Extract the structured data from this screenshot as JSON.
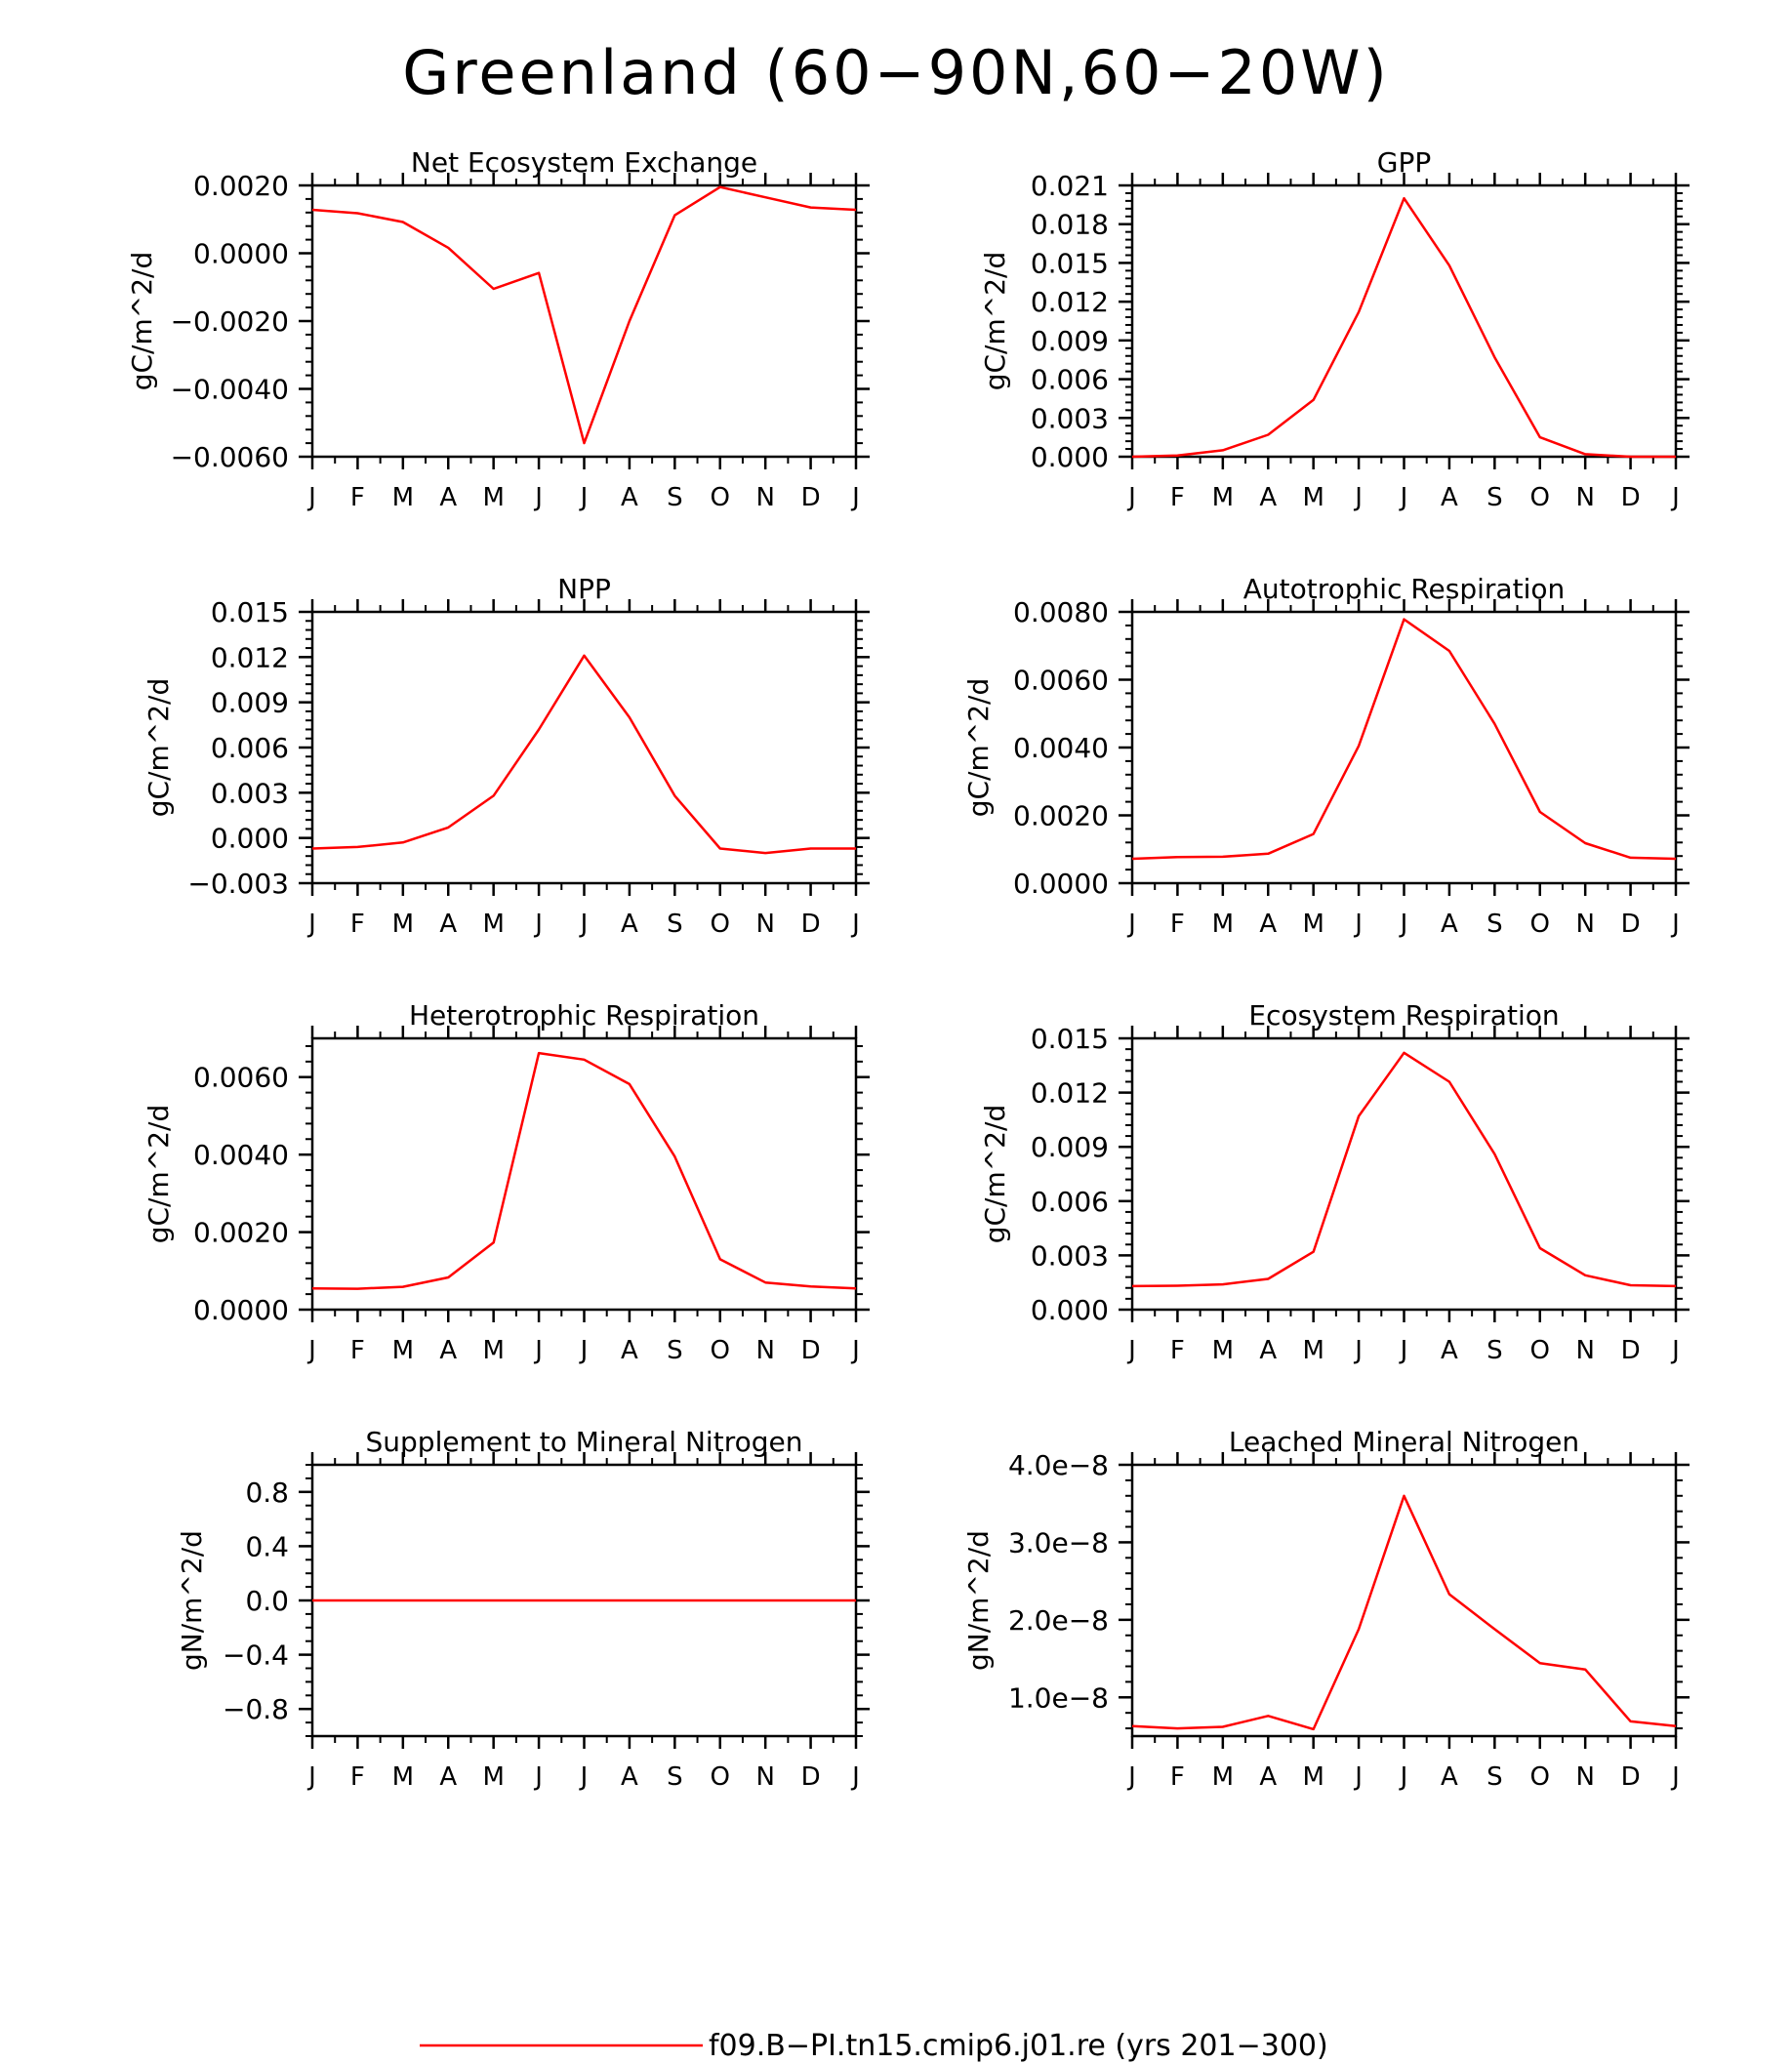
{
  "title": "Greenland (60−90N,60−20W)",
  "legend": {
    "label": "f09.B−PI.tn15.cmip6.j01.re (yrs 201−300)",
    "color": "#ff0000"
  },
  "x_tick_labels": [
    "J",
    "F",
    "M",
    "A",
    "M",
    "J",
    "J",
    "A",
    "S",
    "O",
    "N",
    "D",
    "J"
  ],
  "chart_data": [
    {
      "type": "line",
      "title": "Net Ecosystem Exchange",
      "ylabel": "gC/m^2/d",
      "ylim": [
        -0.006,
        0.002
      ],
      "yticks": [
        -0.006,
        -0.004,
        -0.002,
        0.0,
        0.002
      ],
      "ytick_labels": [
        "−0.0060",
        "−0.0040",
        "−0.0020",
        "0.0000",
        "0.0020"
      ],
      "values": [
        0.00128,
        0.00118,
        0.00092,
        0.00016,
        -0.00105,
        -0.00058,
        -0.0056,
        -0.002,
        0.00112,
        0.00195,
        0.00165,
        0.00135,
        0.00128
      ]
    },
    {
      "type": "line",
      "title": "GPP",
      "ylabel": "gC/m^2/d",
      "ylim": [
        0.0,
        0.021
      ],
      "yticks": [
        0.0,
        0.003,
        0.006,
        0.009,
        0.012,
        0.015,
        0.018,
        0.021
      ],
      "ytick_labels": [
        "0.000",
        "0.003",
        "0.006",
        "0.009",
        "0.012",
        "0.015",
        "0.018",
        "0.021"
      ],
      "values": [
        0.0,
        0.0001,
        0.0005,
        0.0017,
        0.0044,
        0.0112,
        0.02,
        0.0148,
        0.0077,
        0.0015,
        0.0002,
        0.0,
        0.0
      ]
    },
    {
      "type": "line",
      "title": "NPP",
      "ylabel": "gC/m^2/d",
      "ylim": [
        -0.003,
        0.015
      ],
      "yticks": [
        -0.003,
        0.0,
        0.003,
        0.006,
        0.009,
        0.012,
        0.015
      ],
      "ytick_labels": [
        "−0.003",
        "0.000",
        "0.003",
        "0.006",
        "0.009",
        "0.012",
        "0.015"
      ],
      "values": [
        -0.0007,
        -0.0006,
        -0.0003,
        0.0007,
        0.0028,
        0.0072,
        0.0121,
        0.008,
        0.0028,
        -0.0007,
        -0.001,
        -0.0007,
        -0.0007
      ]
    },
    {
      "type": "line",
      "title": "Autotrophic Respiration",
      "ylabel": "gC/m^2/d",
      "ylim": [
        0.0,
        0.008
      ],
      "yticks": [
        0.0,
        0.002,
        0.004,
        0.006,
        0.008
      ],
      "ytick_labels": [
        "0.0000",
        "0.0020",
        "0.0040",
        "0.0060",
        "0.0080"
      ],
      "values": [
        0.00072,
        0.00077,
        0.00078,
        0.00087,
        0.00145,
        0.00405,
        0.00778,
        0.00685,
        0.0047,
        0.0021,
        0.00118,
        0.00075,
        0.00072
      ]
    },
    {
      "type": "line",
      "title": "Heterotrophic Respiration",
      "ylabel": "gC/m^2/d",
      "ylim": [
        0.0,
        0.007
      ],
      "yticks": [
        0.0,
        0.002,
        0.004,
        0.006
      ],
      "ytick_labels": [
        "0.0000",
        "0.0020",
        "0.0040",
        "0.0060"
      ],
      "values": [
        0.00055,
        0.00054,
        0.00059,
        0.00083,
        0.00173,
        0.00662,
        0.00645,
        0.00582,
        0.00395,
        0.0013,
        0.0007,
        0.0006,
        0.00055
      ]
    },
    {
      "type": "line",
      "title": "Ecosystem Respiration",
      "ylabel": "gC/m^2/d",
      "ylim": [
        0.0,
        0.015
      ],
      "yticks": [
        0.0,
        0.003,
        0.006,
        0.009,
        0.012,
        0.015
      ],
      "ytick_labels": [
        "0.000",
        "0.003",
        "0.006",
        "0.009",
        "0.012",
        "0.015"
      ],
      "values": [
        0.0013,
        0.00132,
        0.0014,
        0.0017,
        0.0032,
        0.0107,
        0.0142,
        0.0126,
        0.0086,
        0.0034,
        0.0019,
        0.00135,
        0.0013
      ]
    },
    {
      "type": "line",
      "title": "Supplement to Mineral Nitrogen",
      "ylabel": "gN/m^2/d",
      "ylim": [
        -1.0,
        1.0
      ],
      "yticks": [
        -0.8,
        -0.4,
        0.0,
        0.4,
        0.8
      ],
      "ytick_labels": [
        "−0.8",
        "−0.4",
        "0.0",
        "0.4",
        "0.8"
      ],
      "minor_step": 0.1,
      "values": [
        0,
        0,
        0,
        0,
        0,
        0,
        0,
        0,
        0,
        0,
        0,
        0,
        0
      ]
    },
    {
      "type": "line",
      "title": "Leached Mineral Nitrogen",
      "ylabel": "gN/m^2/d",
      "ylim": [
        5e-09,
        4e-08
      ],
      "yticks": [
        1e-08,
        2e-08,
        3e-08,
        4e-08
      ],
      "ytick_labels": [
        "1.0e−8",
        "2.0e−8",
        "3.0e−8",
        "4.0e−8"
      ],
      "minor_step": 2e-09,
      "values": [
        6.3e-09,
        6e-09,
        6.2e-09,
        7.6e-09,
        5.9e-09,
        1.88e-08,
        3.6e-08,
        2.33e-08,
        1.88e-08,
        1.44e-08,
        1.36e-08,
        6.9e-09,
        6.3e-09
      ]
    }
  ]
}
